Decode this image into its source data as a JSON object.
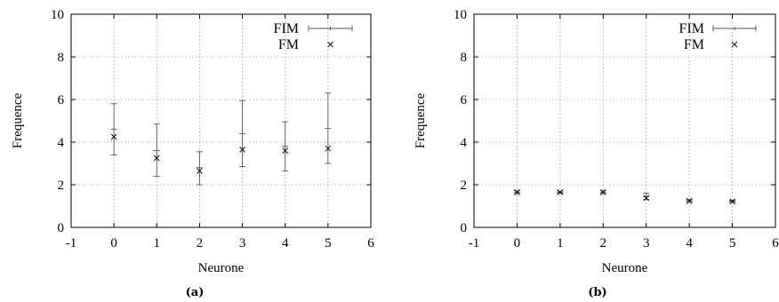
{
  "chart_data": [
    {
      "type": "scatter",
      "caption": "(a)",
      "xlabel": "Neurone",
      "ylabel": "Frequence",
      "xlim": [
        -1,
        6
      ],
      "ylim": [
        0,
        10
      ],
      "xticks": [
        "-1",
        "0",
        "1",
        "2",
        "3",
        "4",
        "5",
        "6"
      ],
      "yticks": [
        "0",
        "2",
        "4",
        "6",
        "8",
        "10"
      ],
      "grid": true,
      "legend_position": "top-right",
      "series": [
        {
          "name": "FIM",
          "kind": "errorbars",
          "points": [
            {
              "x": 0,
              "y": 4.6,
              "low": 3.4,
              "high": 5.8
            },
            {
              "x": 1,
              "y": 3.6,
              "low": 2.4,
              "high": 4.85
            },
            {
              "x": 2,
              "y": 2.8,
              "low": 2.0,
              "high": 3.55
            },
            {
              "x": 3,
              "y": 4.4,
              "low": 2.85,
              "high": 5.95
            },
            {
              "x": 4,
              "y": 3.8,
              "low": 2.65,
              "high": 4.95
            },
            {
              "x": 5,
              "y": 4.65,
              "low": 3.0,
              "high": 6.3
            }
          ]
        },
        {
          "name": "FM",
          "kind": "points",
          "points": [
            {
              "x": 0,
              "y": 4.25
            },
            {
              "x": 1,
              "y": 3.25
            },
            {
              "x": 2,
              "y": 2.65
            },
            {
              "x": 3,
              "y": 3.65
            },
            {
              "x": 4,
              "y": 3.6
            },
            {
              "x": 5,
              "y": 3.7
            }
          ]
        }
      ]
    },
    {
      "type": "scatter",
      "caption": "(b)",
      "xlabel": "Neurone",
      "ylabel": "Frequence",
      "xlim": [
        -1,
        6
      ],
      "ylim": [
        0,
        10
      ],
      "xticks": [
        "-1",
        "0",
        "1",
        "2",
        "3",
        "4",
        "5",
        "6"
      ],
      "yticks": [
        "0",
        "2",
        "4",
        "6",
        "8",
        "10"
      ],
      "grid": true,
      "legend_position": "top-right",
      "series": [
        {
          "name": "FIM",
          "kind": "errorbars",
          "points": [
            {
              "x": 0,
              "y": 1.65,
              "low": 1.58,
              "high": 1.72
            },
            {
              "x": 1,
              "y": 1.65,
              "low": 1.6,
              "high": 1.7
            },
            {
              "x": 2,
              "y": 1.65,
              "low": 1.58,
              "high": 1.72
            },
            {
              "x": 3,
              "y": 1.45,
              "low": 1.3,
              "high": 1.6
            },
            {
              "x": 4,
              "y": 1.25,
              "low": 1.2,
              "high": 1.3
            },
            {
              "x": 5,
              "y": 1.22,
              "low": 1.18,
              "high": 1.27
            }
          ]
        },
        {
          "name": "FM",
          "kind": "points",
          "points": [
            {
              "x": 0,
              "y": 1.65
            },
            {
              "x": 1,
              "y": 1.65
            },
            {
              "x": 2,
              "y": 1.65
            },
            {
              "x": 3,
              "y": 1.38
            },
            {
              "x": 4,
              "y": 1.24
            },
            {
              "x": 5,
              "y": 1.22
            }
          ]
        }
      ]
    }
  ]
}
